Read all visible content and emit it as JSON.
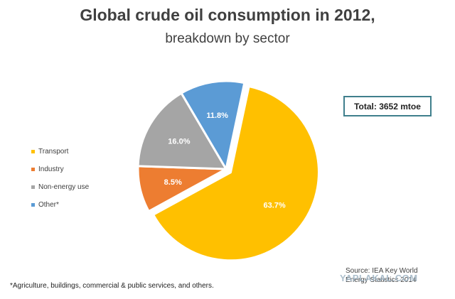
{
  "chart_data": {
    "type": "pie",
    "title": "Global crude oil consumption in 2012,",
    "subtitle": "breakdown by sector",
    "categories": [
      "Transport",
      "Industry",
      "Non-energy use",
      "Other*"
    ],
    "values": [
      63.7,
      8.5,
      16.0,
      11.8
    ],
    "data_labels": [
      "63.7%",
      "8.5%",
      "16.0%",
      "11.8%"
    ],
    "colors": [
      "#ffc000",
      "#ed7d31",
      "#a5a5a5",
      "#5b9bd5"
    ],
    "legend_placement": "left",
    "start_angle_deg": 12,
    "exploded_slice": "Transport"
  },
  "annotations": {
    "total": "Total: 3652 mtoe",
    "source_line1": "Source: IEA Key World",
    "source_line2": "Energy Statistics 2014",
    "footnote": "*Agriculture, buildings, commercial & public services, and others.",
    "watermark": "YAPLAKAL.COM"
  }
}
